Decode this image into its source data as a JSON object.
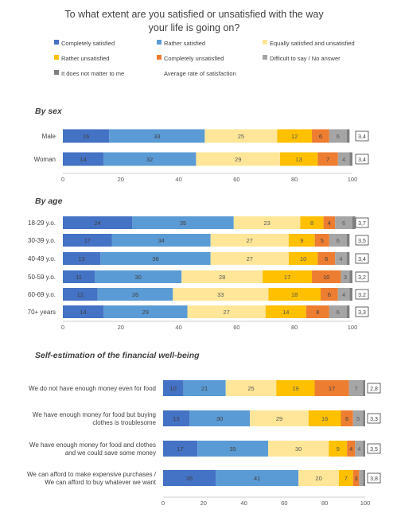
{
  "chart_data": {
    "type": "bar",
    "stacked": true,
    "orientation": "horizontal",
    "title": "To what extent are you satisfied or unsatisfied with the way your life is going on?",
    "legend_position": "top",
    "xlim": [
      0,
      100
    ],
    "x_ticks": [
      "0",
      "20",
      "40",
      "60",
      "80",
      "100"
    ],
    "grid": false,
    "series": [
      {
        "name": "Completely satisfied",
        "color": "#4472C4"
      },
      {
        "name": "Rather satisfied",
        "color": "#5B9BD5"
      },
      {
        "name": "Equally satisfied and unsatisfied",
        "color": "#FFE699"
      },
      {
        "name": "Rather unsatisfied",
        "color": "#FFC000"
      },
      {
        "name": "Completely unsatisfied",
        "color": "#ED7D31"
      },
      {
        "name": "Difficult to say / No answer",
        "color": "#A5A5A5"
      },
      {
        "name": "It does not matter to me",
        "color": "#7F7F7F"
      },
      {
        "name": "Average rate of satisfaction",
        "color": "#FFFFFF"
      }
    ],
    "groups": [
      {
        "title": "By sex",
        "rows": [
          {
            "label": "Male",
            "values": [
              16,
              33,
              25,
              12,
              6,
              6,
              1
            ],
            "average": "3,4"
          },
          {
            "label": "Woman",
            "values": [
              14,
              32,
              29,
              13,
              7,
              4,
              1
            ],
            "average": "3,4"
          }
        ]
      },
      {
        "title": "By age",
        "rows": [
          {
            "label": "18-29 y.o.",
            "values": [
              24,
              35,
              23,
              8,
              4,
              6,
              1
            ],
            "average": "3,7"
          },
          {
            "label": "30-39 y.o.",
            "values": [
              17,
              34,
              27,
              9,
              5,
              6,
              1
            ],
            "average": "3,5"
          },
          {
            "label": "40-49 y.o.",
            "values": [
              13,
              38,
              27,
              10,
              6,
              4,
              1
            ],
            "average": "3,4"
          },
          {
            "label": "50-59 y.o.",
            "values": [
              11,
              30,
              28,
              17,
              10,
              3,
              1
            ],
            "average": "3,2"
          },
          {
            "label": "60-69 y.o.",
            "values": [
              12,
              26,
              33,
              18,
              6,
              4,
              1
            ],
            "average": "3,2"
          },
          {
            "label": "70+ years",
            "values": [
              14,
              29,
              27,
              14,
              8,
              6,
              1
            ],
            "average": "3,3"
          }
        ]
      },
      {
        "title": "Self-estimation of the financial well-being",
        "rows": [
          {
            "label": "We do not have enough money even for food",
            "values": [
              10,
              21,
              25,
              19,
              17,
              7,
              1
            ],
            "average": "2,8"
          },
          {
            "label": "We have enough money for food but buying clothes is troublesome",
            "values": [
              13,
              30,
              29,
              16,
              6,
              5,
              1
            ],
            "average": "3,3"
          },
          {
            "label": "We have enough money for food and clothes and we could save some money",
            "values": [
              17,
              35,
              30,
              9,
              4,
              4,
              1
            ],
            "average": "3,5"
          },
          {
            "label": "We can afford to make expensive purchases / We can afford to buy whatever we want",
            "values": [
              26,
              41,
              20,
              7,
              3,
              2,
              1
            ],
            "average": "3,8"
          }
        ]
      }
    ]
  }
}
